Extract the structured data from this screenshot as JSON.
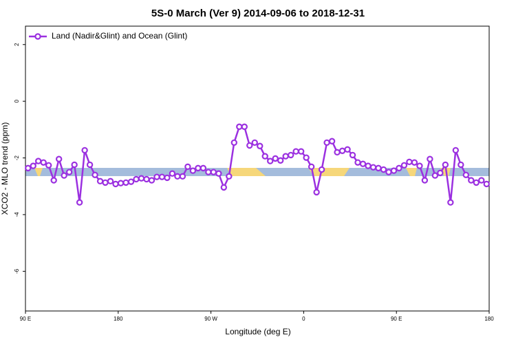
{
  "chart_data": {
    "type": "line",
    "title": "5S-0 March (Ver 9)   2014-09-06 to 2018-12-31",
    "x_label": "Longitude (deg E)",
    "y_label": "XCO2 - MLO trend (ppm)",
    "legend_position": "top-left",
    "xlim": [
      90,
      540
    ],
    "xticks": [
      {
        "value": 90,
        "label": "90 E"
      },
      180,
      {
        "value": 270,
        "label": "90 W"
      },
      {
        "value": 360,
        "label": "0"
      },
      {
        "value": 450,
        "label": "90 E"
      },
      {
        "value": 540,
        "label": "180"
      }
    ],
    "ylim": [
      -7.4,
      2.65
    ],
    "yticks": [
      2,
      0,
      -2,
      -4,
      -6
    ],
    "x": [
      92.5,
      97.5,
      102.5,
      107.5,
      112.5,
      117.5,
      122.5,
      127.5,
      132.5,
      137.5,
      142.5,
      147.5,
      152.5,
      157.5,
      162.5,
      167.5,
      172.5,
      177.5,
      182.5,
      187.5,
      192.5,
      197.5,
      202.5,
      207.5,
      212.5,
      217.5,
      222.5,
      227.5,
      232.5,
      237.5,
      242.5,
      247.5,
      252.5,
      257.5,
      262.5,
      267.5,
      272.5,
      277.5,
      282.5,
      287.5,
      292.5,
      297.5,
      302.5,
      307.5,
      312.5,
      317.5,
      322.5,
      327.5,
      332.5,
      337.5,
      342.5,
      347.5,
      352.5,
      357.5,
      362.5,
      367.5,
      372.5,
      377.5,
      382.5,
      387.5,
      392.5,
      397.5,
      402.5,
      407.5,
      412.5,
      417.5,
      422.5,
      427.5,
      432.5,
      437.5,
      442.5,
      447.5,
      452.5,
      457.5,
      462.5,
      467.5,
      472.5,
      477.5,
      482.5,
      487.5,
      492.5,
      497.5,
      502.5,
      507.5,
      512.5,
      517.5,
      522.5,
      527.5,
      532.5,
      537.5
    ],
    "series": [
      {
        "name": "Land (Nadir&Glint) and Ocean (Glint)",
        "color": "#9b30e0",
        "values": [
          -2.36,
          -2.28,
          -2.11,
          -2.16,
          -2.26,
          -2.79,
          -2.04,
          -2.62,
          -2.5,
          -2.24,
          -3.57,
          -1.73,
          -2.24,
          -2.6,
          -2.82,
          -2.87,
          -2.82,
          -2.92,
          -2.89,
          -2.87,
          -2.84,
          -2.75,
          -2.72,
          -2.75,
          -2.79,
          -2.67,
          -2.67,
          -2.7,
          -2.55,
          -2.65,
          -2.65,
          -2.31,
          -2.45,
          -2.36,
          -2.36,
          -2.5,
          -2.5,
          -2.55,
          -3.04,
          -2.65,
          -1.46,
          -0.9,
          -0.9,
          -1.56,
          -1.46,
          -1.58,
          -1.94,
          -2.11,
          -2.02,
          -2.09,
          -1.94,
          -1.9,
          -1.77,
          -1.77,
          -1.99,
          -2.31,
          -3.21,
          -2.41,
          -1.46,
          -1.41,
          -1.8,
          -1.75,
          -1.7,
          -1.9,
          -2.16,
          -2.21,
          -2.28,
          -2.33,
          -2.36,
          -2.41,
          -2.5,
          -2.45,
          -2.36,
          -2.26,
          -2.14,
          -2.16,
          -2.28,
          -2.79,
          -2.04,
          -2.62,
          -2.53,
          -2.24,
          -3.57,
          -1.73,
          -2.24,
          -2.6,
          -2.79,
          -2.87,
          -2.79,
          -2.92
        ]
      }
    ]
  }
}
